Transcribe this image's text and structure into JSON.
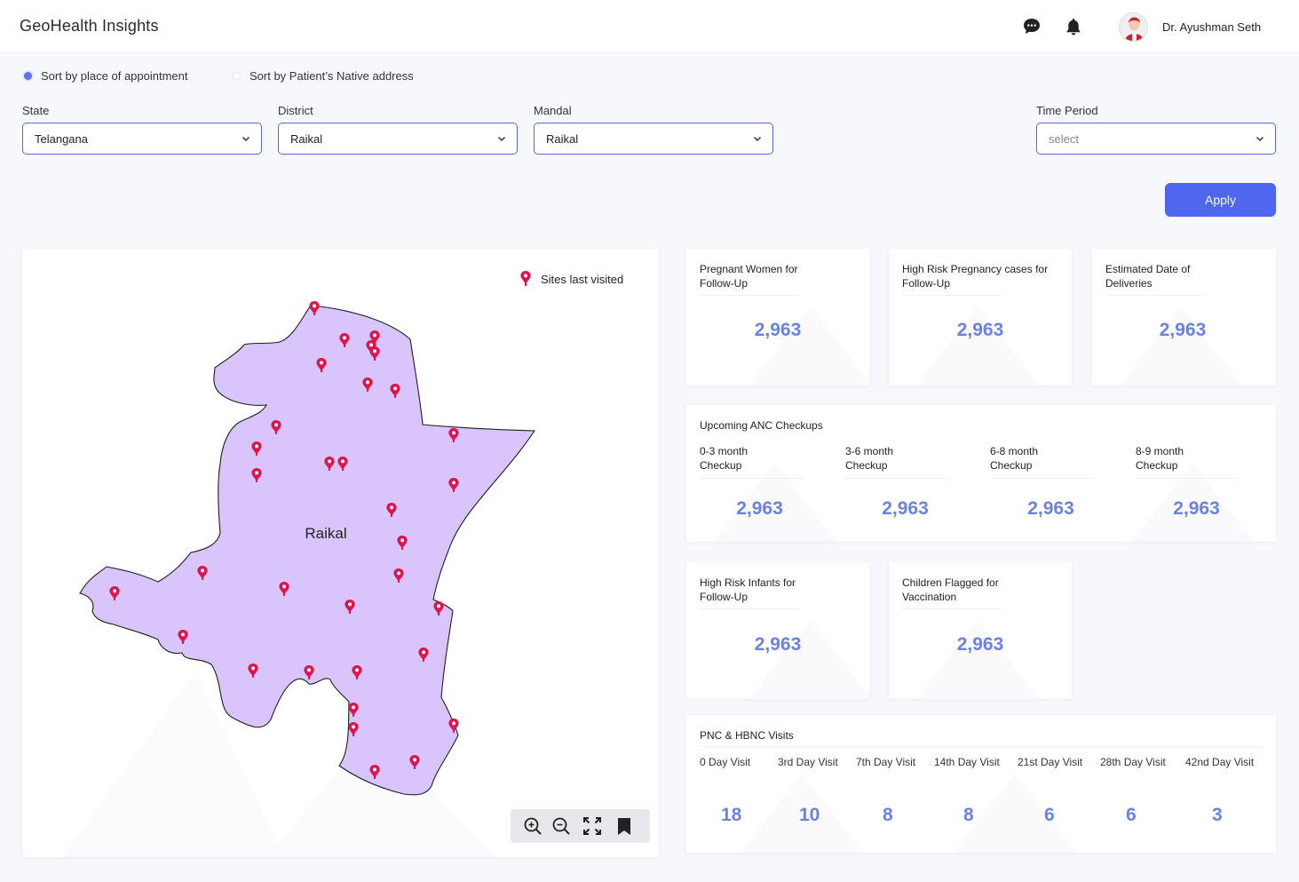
{
  "app": {
    "title": "GeoHealth Insights"
  },
  "user": {
    "name": "Dr. Ayushman Seth"
  },
  "icons": {
    "chat": "chat-icon",
    "bell": "bell-icon",
    "pin": "map-pin-icon"
  },
  "colors": {
    "accent": "#4f66ee",
    "number": "#6b82e3",
    "region_fill": "#d9c4fb",
    "pin": "#e0144c"
  },
  "sort": {
    "option1": "Sort by place of appointment",
    "option2": "Sort by Patient’s Native address",
    "selected": "option1"
  },
  "filters": {
    "state": {
      "label": "State",
      "value": "Telangana"
    },
    "district": {
      "label": "District",
      "value": "Raikal"
    },
    "mandal": {
      "label": "Mandal",
      "value": "Raikal"
    },
    "time_period": {
      "label": "Time Period",
      "placeholder": "select"
    },
    "apply_label": "Apply"
  },
  "map": {
    "legend": "Sites last visited",
    "region_label": "Raikal"
  },
  "cards": {
    "pregnant": {
      "title_line1": "Pregnant Women for",
      "title_line2": "Follow-Up",
      "value": "2,963"
    },
    "high_risk_preg": {
      "title_line1": "High Risk Pregnancy cases for",
      "title_line2": "Follow-Up",
      "value": "2,963"
    },
    "edd": {
      "title_line1": "Estimated Date of",
      "title_line2": "Deliveries",
      "value": "2,963"
    },
    "anc": {
      "title": "Upcoming ANC Checkups",
      "items": [
        {
          "line1": "0-3 month",
          "line2": "Checkup",
          "value": "2,963"
        },
        {
          "line1": "3-6 month",
          "line2": "Checkup",
          "value": "2,963"
        },
        {
          "line1": "6-8 month",
          "line2": "Checkup",
          "value": "2,963"
        },
        {
          "line1": "8-9 month",
          "line2": "Checkup",
          "value": "2,963"
        }
      ]
    },
    "infants": {
      "title_line1": "High Risk Infants for",
      "title_line2": "Follow-Up",
      "value": "2,963"
    },
    "vaccination": {
      "title_line1": "Children Flagged for",
      "title_line2": "Vaccination",
      "value": "2,963"
    },
    "pnc": {
      "title": "PNC & HBNC Visits",
      "visits": [
        {
          "label": "0 Day Visit",
          "value": "18"
        },
        {
          "label": "3rd Day Visit",
          "value": "10"
        },
        {
          "label": "7th Day Visit",
          "value": "8"
        },
        {
          "label": "14th Day Visit",
          "value": "8"
        },
        {
          "label": "21st Day Visit",
          "value": "6"
        },
        {
          "label": "28th Day Visit",
          "value": "6"
        },
        {
          "label": "42nd Day Visit",
          "value": "3"
        }
      ]
    }
  }
}
